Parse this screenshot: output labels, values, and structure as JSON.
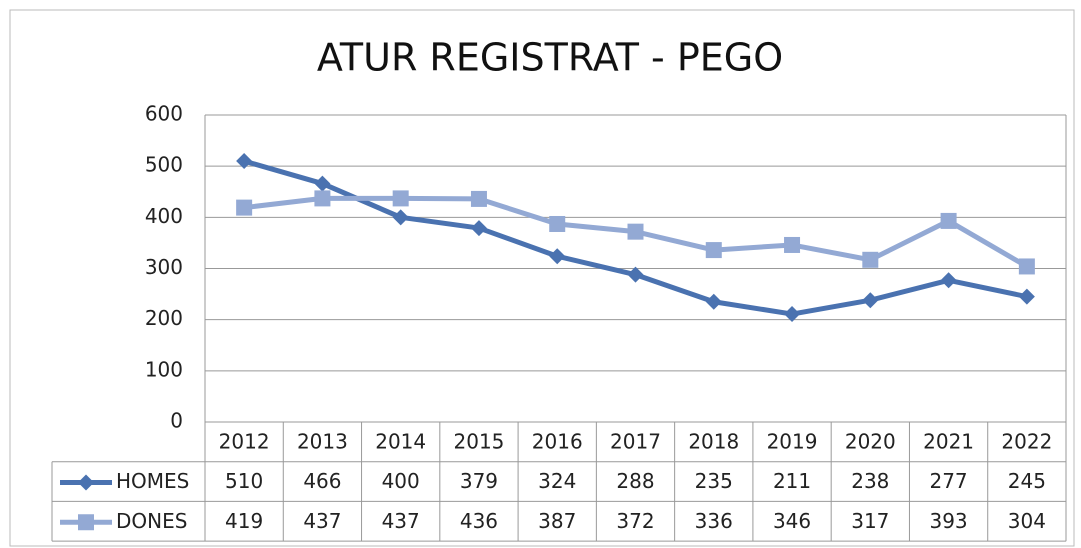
{
  "chart_data": {
    "type": "line",
    "title": "ATUR REGISTRAT - PEGO",
    "categories": [
      "2012",
      "2013",
      "2014",
      "2015",
      "2016",
      "2017",
      "2018",
      "2019",
      "2020",
      "2021",
      "2022"
    ],
    "series": [
      {
        "name": "HOMES",
        "color": "#4a72b0",
        "marker": "diamond",
        "values": [
          510,
          466,
          400,
          379,
          324,
          288,
          235,
          211,
          238,
          277,
          245
        ]
      },
      {
        "name": "DONES",
        "color": "#93a9d4",
        "marker": "square",
        "values": [
          419,
          437,
          437,
          436,
          387,
          372,
          336,
          346,
          317,
          393,
          304
        ]
      }
    ],
    "ylim": [
      0,
      600
    ],
    "yticks": [
      0,
      100,
      200,
      300,
      400,
      500,
      600
    ],
    "grid": true,
    "data_table": true
  }
}
